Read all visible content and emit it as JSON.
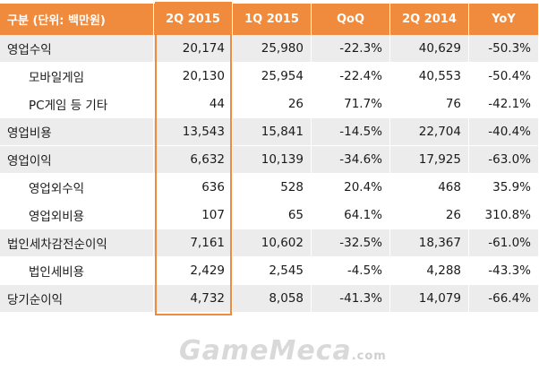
{
  "headers": [
    "구분 (단위: 백만원)",
    "2Q 2015",
    "1Q 2015",
    "QoQ",
    "2Q 2014",
    "YoY"
  ],
  "rows": [
    {
      "label": "영업수익",
      "values": [
        "20,174",
        "25,980",
        "-22.3%",
        "40,629",
        "-50.3%"
      ],
      "level": "top"
    },
    {
      "label": "모바일게임",
      "values": [
        "20,130",
        "25,954",
        "-22.4%",
        "40,553",
        "-50.4%"
      ],
      "level": "sub"
    },
    {
      "label": "PC게임 등 기타",
      "values": [
        "44",
        "26",
        "71.7%",
        "76",
        "-42.1%"
      ],
      "level": "sub"
    },
    {
      "label": "영업비용",
      "values": [
        "13,543",
        "15,841",
        "-14.5%",
        "22,704",
        "-40.4%"
      ],
      "level": "top"
    },
    {
      "label": "영업이익",
      "values": [
        "6,632",
        "10,139",
        "-34.6%",
        "17,925",
        "-63.0%"
      ],
      "level": "top"
    },
    {
      "label": "영업외수익",
      "values": [
        "636",
        "528",
        "20.4%",
        "468",
        "35.9%"
      ],
      "level": "sub"
    },
    {
      "label": "영업외비용",
      "values": [
        "107",
        "65",
        "64.1%",
        "26",
        "310.8%"
      ],
      "level": "sub"
    },
    {
      "label": "법인세차감전순이익",
      "values": [
        "7,161",
        "10,602",
        "-32.5%",
        "18,367",
        "-61.0%"
      ],
      "level": "top"
    },
    {
      "label": "법인세비용",
      "values": [
        "2,429",
        "2,545",
        "-4.5%",
        "4,288",
        "-43.3%"
      ],
      "level": "sub"
    },
    {
      "label": "당기순이익",
      "values": [
        "4,732",
        "8,058",
        "-41.3%",
        "14,079",
        "-66.4%"
      ],
      "level": "top"
    }
  ],
  "colors": {
    "header_bg": "#f08a3c",
    "highlight": "#f08a3c",
    "top_row_bg": "#ececec"
  },
  "watermark": {
    "text": "GameMeca",
    "suffix": ".com"
  }
}
